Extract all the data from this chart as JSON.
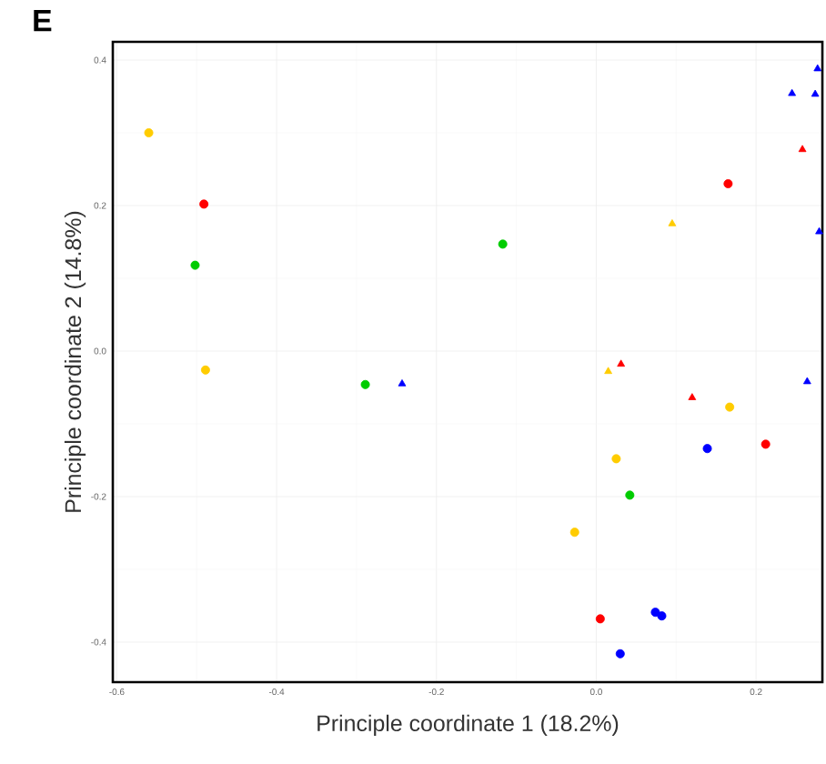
{
  "chart_data": {
    "type": "scatter",
    "title": "E",
    "xlabel": "Principle coordinate 1 (18.2%)",
    "ylabel": "Principle coordinate 2 (14.8%)",
    "xlim": [
      -0.605,
      0.283
    ],
    "ylim": [
      -0.455,
      0.425
    ],
    "xticks": [
      -0.6,
      -0.4,
      -0.2,
      {
        "value": 0,
        "label": "0.0"
      },
      0.2
    ],
    "yticks": [
      -0.4,
      -0.2,
      {
        "value": 0,
        "label": "0.0"
      },
      0.2,
      0.4
    ],
    "grid": true,
    "series": [
      {
        "color": "#ff0000",
        "marker": "circle",
        "x": [
          -0.491,
          0.165,
          0.212,
          0.005
        ],
        "values": [
          0.202,
          0.23,
          -0.128,
          -0.368
        ]
      },
      {
        "color": "#ff0000",
        "marker": "triangle",
        "x": [
          0.258,
          0.031,
          0.12
        ],
        "values": [
          0.277,
          -0.018,
          -0.064
        ]
      },
      {
        "color": "#ffcc00",
        "marker": "circle",
        "x": [
          -0.56,
          -0.489,
          0.167,
          0.025,
          -0.027
        ],
        "values": [
          0.3,
          -0.026,
          -0.077,
          -0.148,
          -0.249
        ]
      },
      {
        "color": "#ffcc00",
        "marker": "triangle",
        "x": [
          0.095,
          0.015
        ],
        "values": [
          0.175,
          -0.028
        ]
      },
      {
        "color": "#00cc00",
        "marker": "circle",
        "x": [
          -0.502,
          -0.117,
          -0.289,
          0.042
        ],
        "values": [
          0.118,
          0.147,
          -0.046,
          -0.198
        ]
      },
      {
        "color": "#0000ff",
        "marker": "circle",
        "x": [
          0.139,
          0.074,
          0.082,
          0.03
        ],
        "values": [
          -0.134,
          -0.359,
          -0.364,
          -0.416
        ]
      },
      {
        "color": "#0000ff",
        "marker": "triangle",
        "x": [
          0.277,
          0.245,
          0.274,
          0.279,
          -0.243,
          0.264
        ],
        "values": [
          0.388,
          0.354,
          0.353,
          0.164,
          -0.045,
          -0.042
        ]
      }
    ]
  }
}
